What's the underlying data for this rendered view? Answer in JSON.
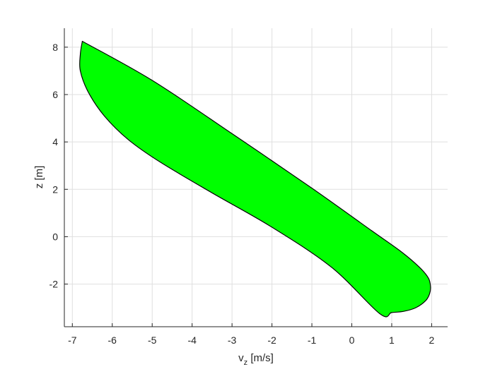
{
  "chart_data": {
    "type": "area",
    "xlabel_main": "v",
    "xlabel_sub": "z",
    "xlabel_unit": " [m/s]",
    "ylabel": "z [m]",
    "xlim": [
      -7.2,
      2.4
    ],
    "ylim": [
      -3.8,
      8.8
    ],
    "xticks": [
      -7,
      -6,
      -5,
      -4,
      -3,
      -2,
      -1,
      0,
      1,
      2
    ],
    "yticks": [
      -2,
      0,
      2,
      4,
      6,
      8
    ],
    "grid": true,
    "fill_color": "#00ff00",
    "edge_color": "#000000",
    "region": {
      "x": [
        -6.75,
        -5.0,
        -3.0,
        -1.0,
        0.5,
        1.25,
        1.7,
        1.92,
        1.97,
        1.95,
        1.85,
        1.6,
        1.3,
        1.0,
        0.7,
        -0.5,
        -2.0,
        -3.5,
        -4.8,
        -5.6,
        -6.2,
        -6.6,
        -6.8,
        -6.8,
        -6.75
      ],
      "y": [
        8.25,
        6.6,
        4.35,
        2.05,
        0.25,
        -0.65,
        -1.3,
        -1.75,
        -2.1,
        -2.4,
        -2.7,
        -3.0,
        -3.15,
        -3.2,
        -3.25,
        -1.3,
        0.4,
        1.85,
        3.15,
        4.1,
        5.1,
        6.1,
        7.0,
        7.7,
        8.25
      ]
    }
  }
}
